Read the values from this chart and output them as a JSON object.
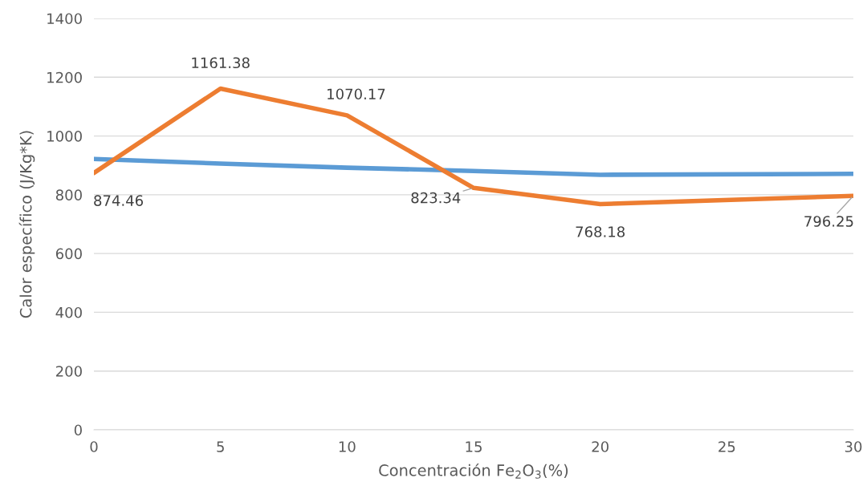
{
  "chart_data": {
    "type": "line",
    "xlabel": "Concentración Fe$_{2}$O$_{3}$(%)",
    "ylabel": "Calor específico (J/Kg*K)",
    "x": [
      0,
      5,
      10,
      15,
      20,
      30
    ],
    "series": [
      {
        "color": "#5b9bd5",
        "values": [
          922,
          906,
          892,
          881,
          868,
          871
        ]
      },
      {
        "color": "#ed7d31",
        "values": [
          874.46,
          1161.38,
          1070.17,
          823.34,
          768.18,
          796.25
        ],
        "value_labels": [
          "874.46",
          "1161.38",
          "1070.17",
          "823.34",
          "768.18",
          "796.25"
        ]
      }
    ],
    "xlim": [
      0,
      30
    ],
    "xticks": [
      0,
      5,
      10,
      15,
      20,
      25,
      30
    ],
    "ylim": [
      0,
      1400
    ],
    "yticks": [
      0,
      200,
      400,
      600,
      800,
      1000,
      1200,
      1400
    ],
    "grid": "y",
    "marker": "none",
    "line_style": "solid"
  }
}
